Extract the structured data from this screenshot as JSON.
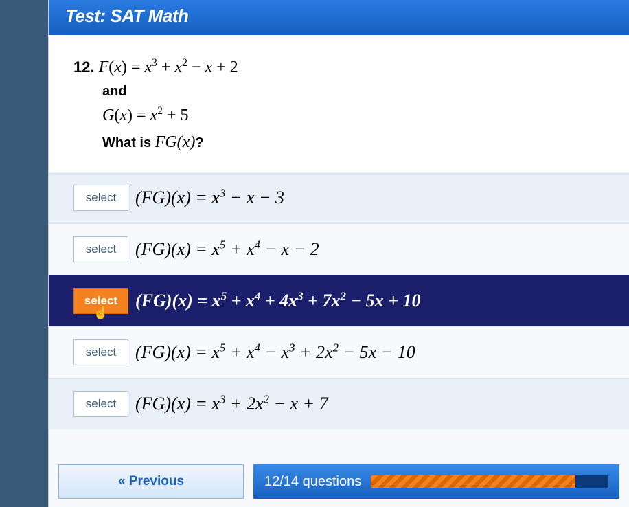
{
  "header": {
    "title": "Test: SAT Math"
  },
  "question": {
    "number": "12.",
    "line1_html": "<span class='italic'>F</span>(<span class='italic'>x</span>) = <span class='italic'>x</span><sup>3</sup> + <span class='italic'>x</span><sup>2</sup> − <span class='italic'>x</span> + 2",
    "and": "and",
    "line2_html": "<span class='italic'>G</span>(<span class='italic'>x</span>) = <span class='italic'>x</span><sup>2</sup> + 5",
    "ask_prefix": "What is ",
    "ask_expr_html": "<span class='italic'>FG</span>(<span class='italic'>x</span>)",
    "ask_suffix": "?"
  },
  "select_label": "select",
  "options": [
    {
      "formula_html": "(<span class='italic'>FG</span>)(<span class='italic'>x</span>) = <span class='italic'>x</span><sup>3</sup> − <span class='italic'>x</span> − 3",
      "alt": true,
      "selected": false
    },
    {
      "formula_html": "(<span class='italic'>FG</span>)(<span class='italic'>x</span>) = <span class='italic'>x</span><sup>5</sup> + <span class='italic'>x</span><sup>4</sup> − <span class='italic'>x</span> − 2",
      "alt": false,
      "selected": false
    },
    {
      "formula_html": "(<span class='italic'>FG</span>)(<span class='italic'>x</span>) = <span class='italic'>x</span><sup>5</sup> + <span class='italic'>x</span><sup>4</sup> + 4<span class='italic'>x</span><sup>3</sup> + 7<span class='italic'>x</span><sup>2</sup> − 5<span class='italic'>x</span> + 10",
      "alt": true,
      "selected": true
    },
    {
      "formula_html": "(<span class='italic'>FG</span>)(<span class='italic'>x</span>) = <span class='italic'>x</span><sup>5</sup> + <span class='italic'>x</span><sup>4</sup> − <span class='italic'>x</span><sup>3</sup> + 2<span class='italic'>x</span><sup>2</sup> − 5<span class='italic'>x</span> − 10",
      "alt": false,
      "selected": false
    },
    {
      "formula_html": "(<span class='italic'>FG</span>)(<span class='italic'>x</span>) = <span class='italic'>x</span><sup>3</sup> + 2<span class='italic'>x</span><sup>2</sup> − <span class='italic'>x</span> + 7",
      "alt": true,
      "selected": false
    }
  ],
  "footer": {
    "previous_label": "« Previous",
    "progress_text": "12/14 questions",
    "progress_percent": 86,
    "colors": {
      "header_bg": "#1f6fd0",
      "selected_bg": "#1a1e6b",
      "selected_btn": "#f58220",
      "alt_row": "#e8eff6"
    }
  }
}
